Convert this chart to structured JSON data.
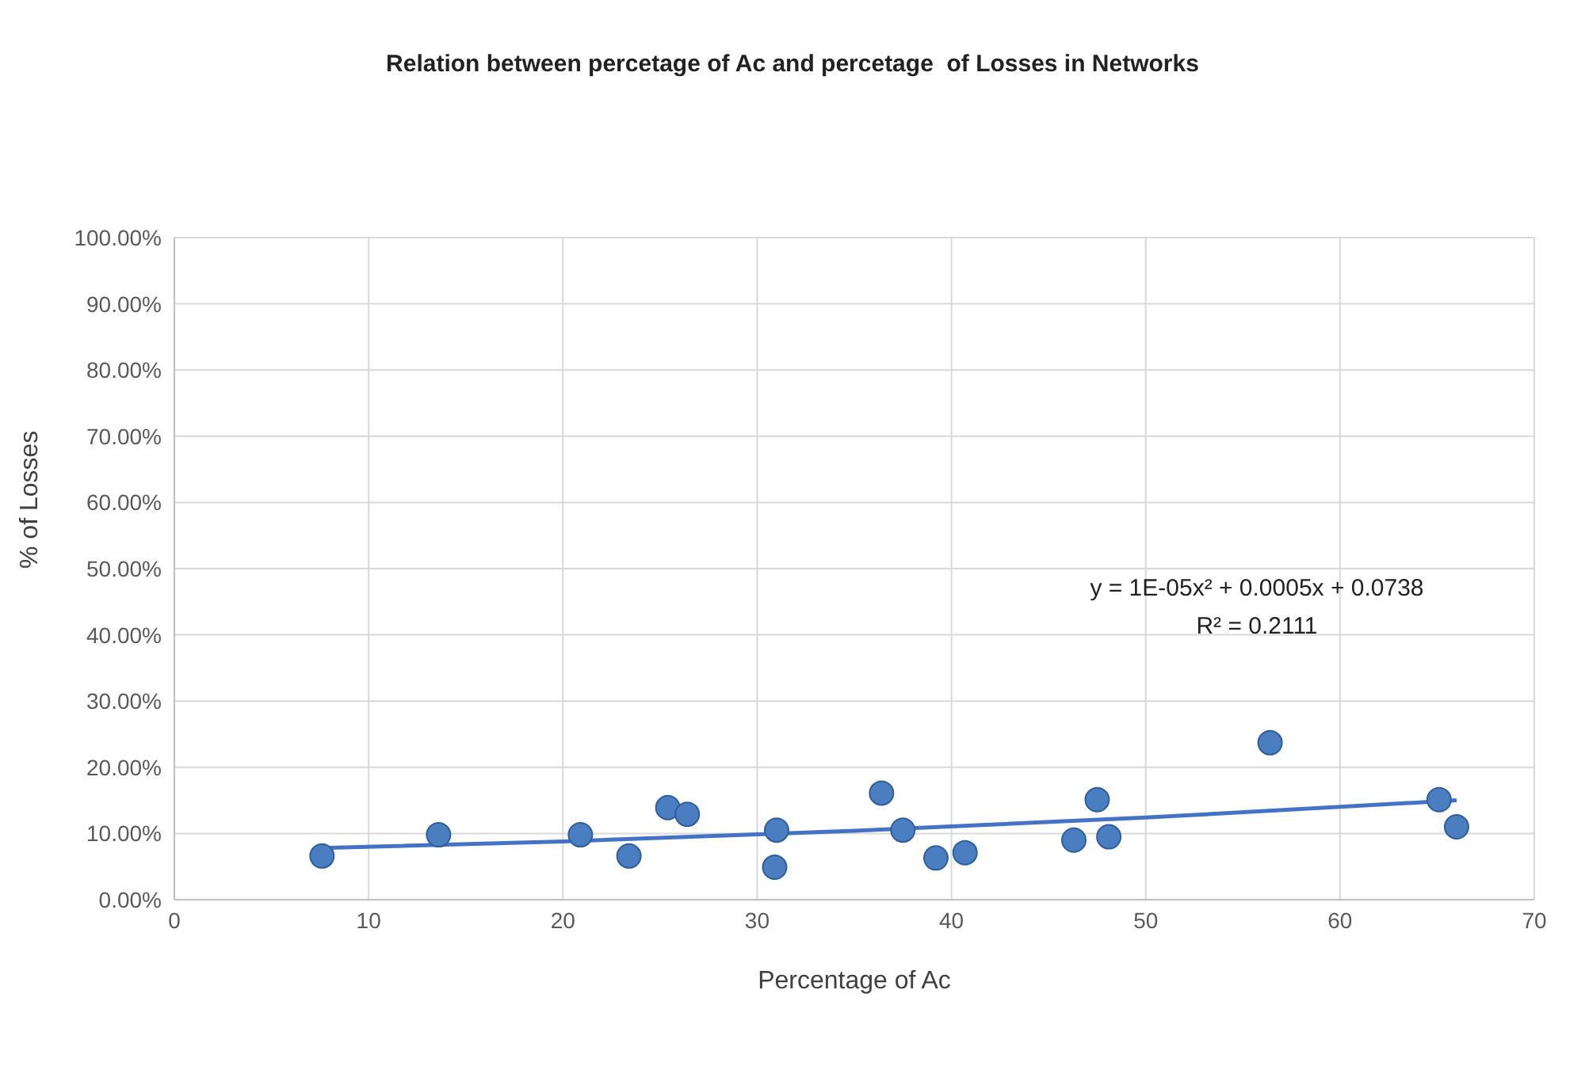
{
  "chart_data": {
    "type": "scatter",
    "title": "Relation between percetage of Ac and percetage  of Losses in Networks",
    "xlabel": "Percentage of Ac",
    "ylabel": "% of Losses",
    "x": [
      7.6,
      13.6,
      20.9,
      23.4,
      25.4,
      26.4,
      31.0,
      30.9,
      36.4,
      37.5,
      39.2,
      40.7,
      46.3,
      47.5,
      48.1,
      56.4,
      65.1,
      66.0
    ],
    "series": [
      {
        "color": "#4a7ec0",
        "values": [
          0.066,
          0.098,
          0.098,
          0.066,
          0.139,
          0.129,
          0.105,
          0.049,
          0.161,
          0.105,
          0.063,
          0.071,
          0.09,
          0.151,
          0.095,
          0.237,
          0.151,
          0.11
        ]
      },
      {
        "type": "line",
        "color": "#4472c4",
        "x": [
          7.6,
          20,
          35,
          50,
          66
        ],
        "values": [
          0.078,
          0.088,
          0.104,
          0.124,
          0.15
        ],
        "marker": "none"
      }
    ],
    "annotations": [
      "y = 1E-05x² + 0.0005x + 0.0738",
      "R² = 0.2111"
    ],
    "xlim": [
      0,
      70
    ],
    "xticks": [
      0,
      10,
      20,
      30,
      40,
      50,
      60,
      70
    ],
    "ylim": [
      0,
      1
    ],
    "yticks": [
      {
        "value": 0,
        "label": "0.00%"
      },
      {
        "value": 0.1,
        "label": "10.00%"
      },
      {
        "value": 0.2,
        "label": "20.00%"
      },
      {
        "value": 0.3,
        "label": "30.00%"
      },
      {
        "value": 0.4,
        "label": "40.00%"
      },
      {
        "value": 0.5,
        "label": "50.00%"
      },
      {
        "value": 0.6,
        "label": "60.00%"
      },
      {
        "value": 0.7,
        "label": "70.00%"
      },
      {
        "value": 0.8,
        "label": "80.00%"
      },
      {
        "value": 0.9,
        "label": "90.00%"
      },
      {
        "value": 1,
        "label": "100.00%"
      }
    ],
    "grid": true,
    "marker": "circle",
    "legend": false
  }
}
